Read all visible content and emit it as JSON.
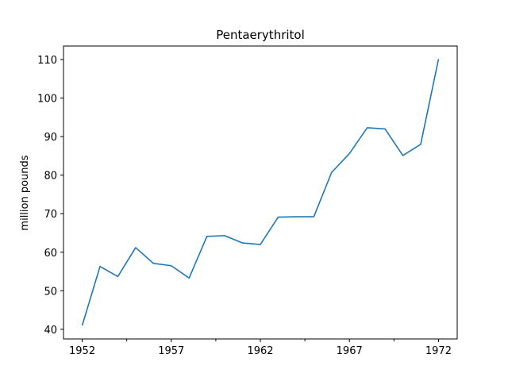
{
  "chart_data": {
    "type": "line",
    "title": "Pentaerythritol",
    "xlabel": "",
    "ylabel": "million pounds",
    "x": [
      1952,
      1953,
      1954,
      1955,
      1956,
      1957,
      1958,
      1959,
      1960,
      1961,
      1962,
      1963,
      1964,
      1965,
      1966,
      1967,
      1968,
      1969,
      1970,
      1971,
      1972
    ],
    "series": [
      {
        "name": "",
        "color": "#1f77b4",
        "values": [
          41.0,
          56.3,
          53.7,
          61.2,
          57.1,
          56.5,
          53.3,
          64.1,
          64.3,
          62.4,
          62.0,
          69.1,
          69.2,
          69.2,
          80.7,
          85.6,
          92.3,
          92.0,
          85.1,
          88.0,
          110.1
        ]
      }
    ],
    "xlim": [
      1950.95,
      1973.05
    ],
    "ylim": [
      37.5,
      113.5
    ],
    "xticks": [
      1952,
      1957,
      1962,
      1967,
      1972
    ],
    "xticks_minor": [
      1954.5,
      1959.5,
      1964.5,
      1969.5
    ],
    "yticks": [
      40,
      50,
      60,
      70,
      80,
      90,
      100,
      110
    ],
    "grid": false
  }
}
